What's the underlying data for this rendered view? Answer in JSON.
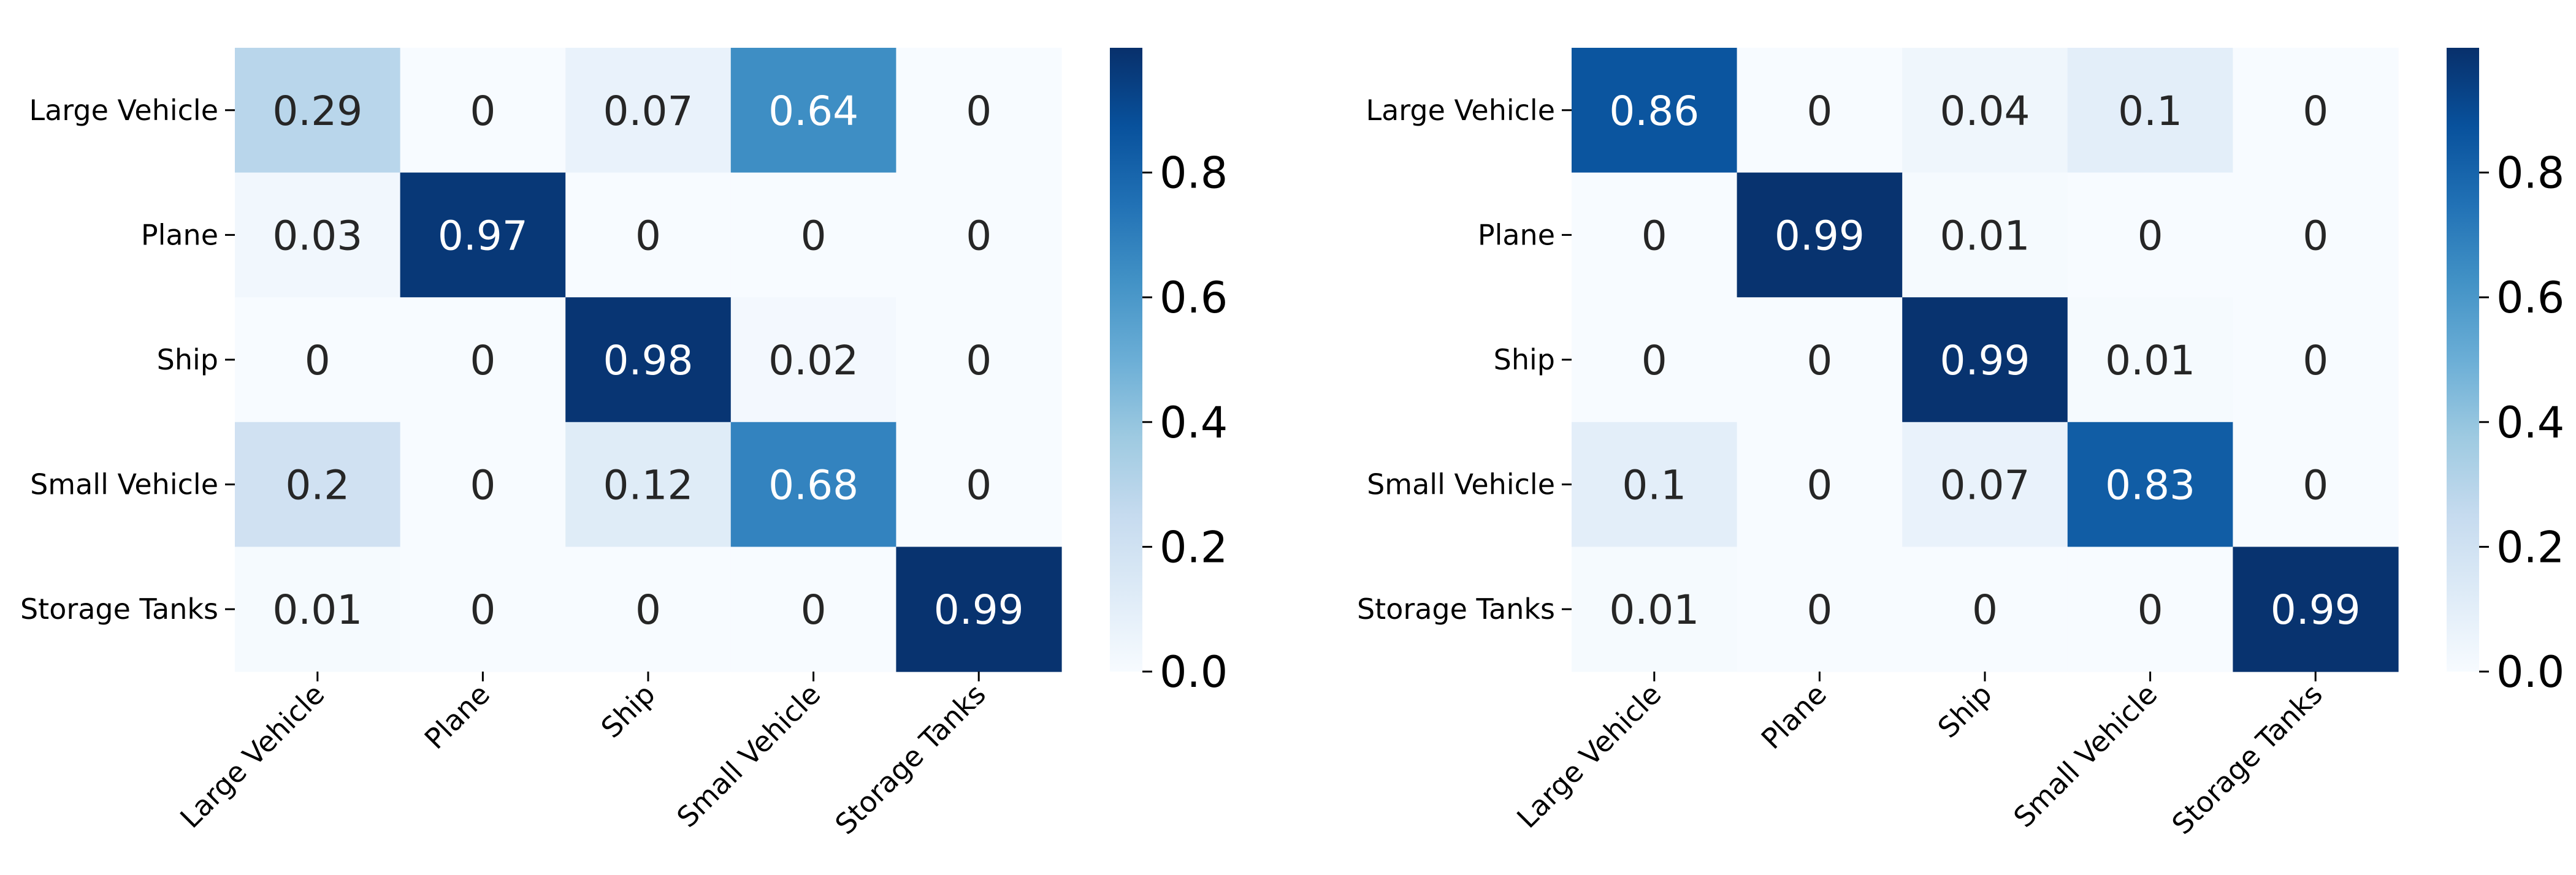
{
  "chart_data": [
    {
      "type": "heatmap",
      "title": "",
      "xlabel": "",
      "ylabel": "",
      "row_labels": [
        "Large Vehicle",
        "Plane",
        "Ship",
        "Small Vehicle",
        "Storage Tanks"
      ],
      "col_labels": [
        "Large Vehicle",
        "Plane",
        "Ship",
        "Small Vehicle",
        "Storage Tanks"
      ],
      "values": [
        [
          0.29,
          0,
          0.07,
          0.64,
          0
        ],
        [
          0.03,
          0.97,
          0,
          0,
          0
        ],
        [
          0,
          0,
          0.98,
          0.02,
          0
        ],
        [
          0.2,
          0,
          0.12,
          0.68,
          0
        ],
        [
          0.01,
          0,
          0,
          0,
          0.99
        ]
      ],
      "colorbar": {
        "ticks": [
          "0.0",
          "0.2",
          "0.4",
          "0.6",
          "0.8"
        ],
        "range": [
          0,
          1
        ],
        "colormap": "Blues"
      }
    },
    {
      "type": "heatmap",
      "title": "",
      "xlabel": "",
      "ylabel": "",
      "row_labels": [
        "Large Vehicle",
        "Plane",
        "Ship",
        "Small Vehicle",
        "Storage Tanks"
      ],
      "col_labels": [
        "Large Vehicle",
        "Plane",
        "Ship",
        "Small Vehicle",
        "Storage Tanks"
      ],
      "values": [
        [
          0.86,
          0,
          0.04,
          0.1,
          0
        ],
        [
          0,
          0.99,
          0.01,
          0,
          0
        ],
        [
          0,
          0,
          0.99,
          0.01,
          0
        ],
        [
          0.1,
          0,
          0.07,
          0.83,
          0
        ],
        [
          0.01,
          0,
          0,
          0,
          0.99
        ]
      ],
      "colorbar": {
        "ticks": [
          "0.0",
          "0.2",
          "0.4",
          "0.6",
          "0.8"
        ],
        "range": [
          0,
          1
        ],
        "colormap": "Blues"
      }
    }
  ]
}
